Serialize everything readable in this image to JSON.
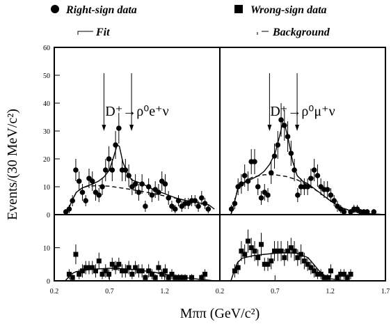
{
  "ylabel": "Events/(30 MeV/c²)",
  "xlabel": "Mππ (GeV/c²)",
  "chart_data": [
    {
      "type": "scatter",
      "title": "D⁺→ρ⁰e⁺ν",
      "xlim": [
        0.2,
        1.7
      ],
      "ylim": [
        0,
        60
      ],
      "yticks": [
        0,
        10,
        20,
        30,
        40,
        50,
        60
      ],
      "xticks": [],
      "arrows": [
        0.65,
        0.9
      ],
      "series": [
        {
          "name": "Right-sign data",
          "marker": "circle",
          "color": "#000000",
          "x": [
            0.305,
            0.335,
            0.365,
            0.395,
            0.425,
            0.455,
            0.485,
            0.515,
            0.545,
            0.575,
            0.605,
            0.635,
            0.665,
            0.695,
            0.725,
            0.755,
            0.785,
            0.815,
            0.845,
            0.875,
            0.905,
            0.935,
            0.965,
            0.995,
            1.025,
            1.055,
            1.085,
            1.115,
            1.145,
            1.175,
            1.205,
            1.235,
            1.265,
            1.295,
            1.325,
            1.355,
            1.385,
            1.415,
            1.445,
            1.475,
            1.505,
            1.535,
            1.565,
            1.595
          ],
          "values": [
            1,
            2,
            5,
            16,
            12,
            8,
            5,
            13,
            12,
            8,
            7,
            10,
            16,
            20,
            16,
            25,
            31,
            16,
            16,
            14,
            10,
            11,
            8,
            11,
            3,
            10,
            7,
            9,
            8,
            12,
            11,
            6,
            3,
            2,
            5,
            3,
            4,
            4,
            5,
            5,
            3,
            6,
            4,
            2
          ],
          "errors": [
            1,
            1.5,
            2,
            4,
            3.5,
            3,
            2,
            3.5,
            3.5,
            3,
            2.5,
            3,
            4,
            4.5,
            4,
            5,
            5.5,
            4,
            4,
            4,
            3,
            3.5,
            3,
            3.5,
            2,
            3,
            2.5,
            3,
            3,
            3.5,
            3.5,
            2.5,
            2,
            1.5,
            2,
            2,
            2,
            2,
            2,
            2,
            2,
            2.5,
            2,
            1.5
          ]
        },
        {
          "name": "Fit",
          "line": "solid",
          "color": "#000000",
          "x": [
            0.3,
            0.33,
            0.36,
            0.4,
            0.45,
            0.5,
            0.55,
            0.6,
            0.65,
            0.7,
            0.74,
            0.77,
            0.79,
            0.82,
            0.86,
            0.9,
            1.0,
            1.1,
            1.2,
            1.3,
            1.4,
            1.5,
            1.6,
            1.65
          ],
          "values": [
            0,
            2,
            5,
            8,
            9.5,
            10.3,
            11,
            12,
            13.5,
            16,
            21,
            25,
            24.5,
            19,
            15,
            12.5,
            11,
            9,
            7.5,
            6,
            5,
            4.3,
            3.5,
            2
          ]
        },
        {
          "name": "Background",
          "line": "dashed",
          "color": "#000000",
          "x": [
            0.3,
            0.33,
            0.36,
            0.4,
            0.45,
            0.5,
            0.6,
            0.7,
            0.8,
            0.9,
            1.0,
            1.1,
            1.2,
            1.3,
            1.4,
            1.5,
            1.6,
            1.65
          ],
          "values": [
            0,
            2,
            5,
            8,
            9.5,
            10.2,
            10.4,
            10.2,
            9.6,
            9,
            8.3,
            7.5,
            6.7,
            5.9,
            5,
            4.3,
            3.5,
            2
          ]
        }
      ]
    },
    {
      "type": "scatter",
      "title": "D⁺→ρ⁰μ⁺ν",
      "xlim": [
        0.2,
        1.7
      ],
      "ylim": [
        0,
        60
      ],
      "yticks": [],
      "xticks": [],
      "arrows": [
        0.65,
        0.9
      ],
      "series": [
        {
          "name": "Right-sign data",
          "marker": "circle",
          "color": "#000000",
          "x": [
            0.305,
            0.335,
            0.365,
            0.395,
            0.425,
            0.455,
            0.485,
            0.515,
            0.545,
            0.575,
            0.605,
            0.635,
            0.665,
            0.695,
            0.725,
            0.755,
            0.785,
            0.815,
            0.845,
            0.875,
            0.905,
            0.935,
            0.965,
            0.995,
            1.025,
            1.055,
            1.085,
            1.115,
            1.145,
            1.175,
            1.205,
            1.235,
            1.265,
            1.295,
            1.325,
            1.355,
            1.385,
            1.415,
            1.445,
            1.475,
            1.505,
            1.535,
            1.565,
            1.595
          ],
          "values": [
            2,
            4,
            10,
            11,
            14,
            12,
            19,
            19,
            10,
            6,
            8,
            7,
            15,
            21,
            25,
            34,
            32,
            28,
            22,
            16,
            7,
            10,
            10,
            10,
            13,
            16,
            14,
            10,
            9,
            9,
            7,
            5,
            3,
            2,
            1,
            null,
            1,
            2,
            2,
            1,
            1,
            1,
            null,
            1
          ],
          "errors": [
            1.5,
            2,
            3,
            3.5,
            4,
            3.5,
            4.5,
            4.5,
            3,
            2.5,
            3,
            2.5,
            4,
            4.5,
            5,
            6,
            5.5,
            5.5,
            4.5,
            4,
            2.5,
            3,
            3,
            3,
            3.5,
            4,
            4,
            3,
            3,
            3,
            2.5,
            2,
            2,
            1.5,
            1,
            null,
            1,
            1.5,
            1.5,
            1,
            1,
            1,
            null,
            1
          ]
        },
        {
          "name": "Fit",
          "line": "solid",
          "color": "#000000",
          "x": [
            0.3,
            0.33,
            0.36,
            0.4,
            0.45,
            0.5,
            0.55,
            0.6,
            0.65,
            0.7,
            0.74,
            0.77,
            0.79,
            0.82,
            0.86,
            0.9,
            0.95,
            1.0,
            1.1,
            1.2,
            1.3,
            1.4,
            1.5,
            1.6,
            1.7
          ],
          "values": [
            0,
            4,
            9,
            11,
            12,
            13,
            14,
            15.5,
            18,
            22,
            28,
            33,
            32,
            27,
            19,
            14,
            12,
            11,
            8,
            5,
            2.5,
            1.2,
            0.5,
            0.2,
            0
          ]
        },
        {
          "name": "Background",
          "line": "dashed",
          "color": "#000000",
          "x": [
            0.3,
            0.33,
            0.36,
            0.4,
            0.45,
            0.5,
            0.6,
            0.7,
            0.8,
            0.9,
            1.0,
            1.1,
            1.2,
            1.3,
            1.4,
            1.5,
            1.6,
            1.7
          ],
          "values": [
            0,
            4,
            9,
            11,
            12.5,
            13.5,
            14.3,
            14.3,
            13.7,
            12.5,
            10.5,
            8,
            5,
            2.5,
            1.2,
            0.5,
            0.2,
            0
          ]
        }
      ]
    },
    {
      "type": "scatter",
      "xlim": [
        0.2,
        1.7
      ],
      "ylim": [
        0,
        20
      ],
      "yticks": [
        0,
        10
      ],
      "xticks": [
        0.2,
        0.7,
        1.2
      ],
      "series": [
        {
          "name": "Wrong-sign data",
          "marker": "square",
          "color": "#000000",
          "x": [
            0.335,
            0.365,
            0.395,
            0.425,
            0.455,
            0.485,
            0.515,
            0.545,
            0.575,
            0.605,
            0.635,
            0.665,
            0.695,
            0.725,
            0.755,
            0.785,
            0.815,
            0.845,
            0.875,
            0.905,
            0.935,
            0.965,
            0.995,
            1.025,
            1.055,
            1.085,
            1.115,
            1.145,
            1.175,
            1.205,
            1.235,
            1.265,
            1.295,
            1.325,
            1.355,
            1.385,
            1.415,
            1.445,
            1.475,
            1.505,
            1.535,
            1.565
          ],
          "values": [
            2,
            1,
            8,
            2,
            3,
            4,
            4,
            4,
            3,
            6,
            2,
            3,
            2,
            5,
            4,
            5,
            3,
            3,
            4,
            2,
            4,
            3,
            3,
            1,
            3,
            2,
            1,
            4,
            2,
            3,
            1,
            2,
            1,
            1,
            1,
            1,
            null,
            1,
            null,
            null,
            1,
            2
          ],
          "errors": [
            1.5,
            1,
            3,
            1.5,
            2,
            2,
            2,
            2,
            2,
            2.5,
            1.5,
            2,
            1.5,
            2,
            2,
            2,
            2,
            2,
            2,
            1.5,
            2,
            2,
            2,
            1,
            2,
            1.5,
            1,
            2,
            1.5,
            2,
            1,
            1.5,
            1,
            1,
            1,
            1,
            null,
            1,
            null,
            null,
            1,
            1.5
          ]
        },
        {
          "name": "Fit",
          "line": "solid",
          "color": "#000000",
          "x": [
            0.3,
            0.35,
            0.4,
            0.5,
            0.6,
            0.7,
            0.8,
            0.9,
            1.0,
            1.1,
            1.2,
            1.3,
            1.4,
            1.5,
            1.6,
            1.65
          ],
          "values": [
            0,
            2,
            2.8,
            3.3,
            3.6,
            3.8,
            3.7,
            3.5,
            3.1,
            2.6,
            2,
            1.4,
            0.9,
            0.5,
            0.2,
            0
          ]
        }
      ]
    },
    {
      "type": "scatter",
      "xlim": [
        0.2,
        1.7
      ],
      "ylim": [
        0,
        20
      ],
      "yticks": [],
      "xticks": [
        0.2,
        0.7,
        1.2,
        1.7
      ],
      "series": [
        {
          "name": "Wrong-sign data",
          "marker": "square",
          "color": "#000000",
          "x": [
            0.335,
            0.365,
            0.395,
            0.425,
            0.455,
            0.485,
            0.515,
            0.545,
            0.575,
            0.605,
            0.635,
            0.665,
            0.695,
            0.725,
            0.755,
            0.785,
            0.815,
            0.845,
            0.875,
            0.905,
            0.935,
            0.965,
            0.995,
            1.025,
            1.055,
            1.085,
            1.115,
            1.145,
            1.175,
            1.205,
            1.235,
            1.265,
            1.295,
            1.325,
            1.355,
            1.385,
            1.415,
            1.445,
            1.475,
            1.505,
            1.535,
            1.565
          ],
          "values": [
            3,
            4,
            9,
            8,
            12,
            10,
            9,
            7,
            11,
            5,
            5,
            6,
            9,
            9,
            9,
            7,
            9,
            10,
            9,
            7,
            8,
            6,
            5,
            4,
            3,
            2,
            2,
            1,
            1,
            3,
            null,
            1,
            2,
            2,
            1,
            2,
            null,
            null,
            null,
            null,
            null,
            null
          ],
          "errors": [
            2,
            2,
            3,
            3,
            3.5,
            3,
            3,
            2.5,
            3.5,
            2,
            2,
            2.5,
            3,
            3,
            3,
            2.5,
            3,
            3,
            3,
            2.5,
            3,
            2.5,
            2,
            2,
            2,
            1.5,
            1.5,
            1,
            1,
            2,
            null,
            1,
            1.5,
            1.5,
            1,
            1.5,
            null,
            null,
            null,
            null,
            null,
            null
          ]
        },
        {
          "name": "Fit",
          "line": "solid",
          "color": "#000000",
          "x": [
            0.3,
            0.33,
            0.36,
            0.4,
            0.5,
            0.6,
            0.7,
            0.8,
            0.9,
            1.0,
            1.05,
            1.1,
            1.15,
            1.2,
            1.3,
            1.4,
            1.7
          ],
          "values": [
            0,
            3,
            5.5,
            6.8,
            7.6,
            8,
            8.3,
            8.5,
            8.3,
            7,
            5,
            3,
            1.5,
            0.6,
            0.2,
            0,
            0
          ]
        }
      ]
    }
  ]
}
